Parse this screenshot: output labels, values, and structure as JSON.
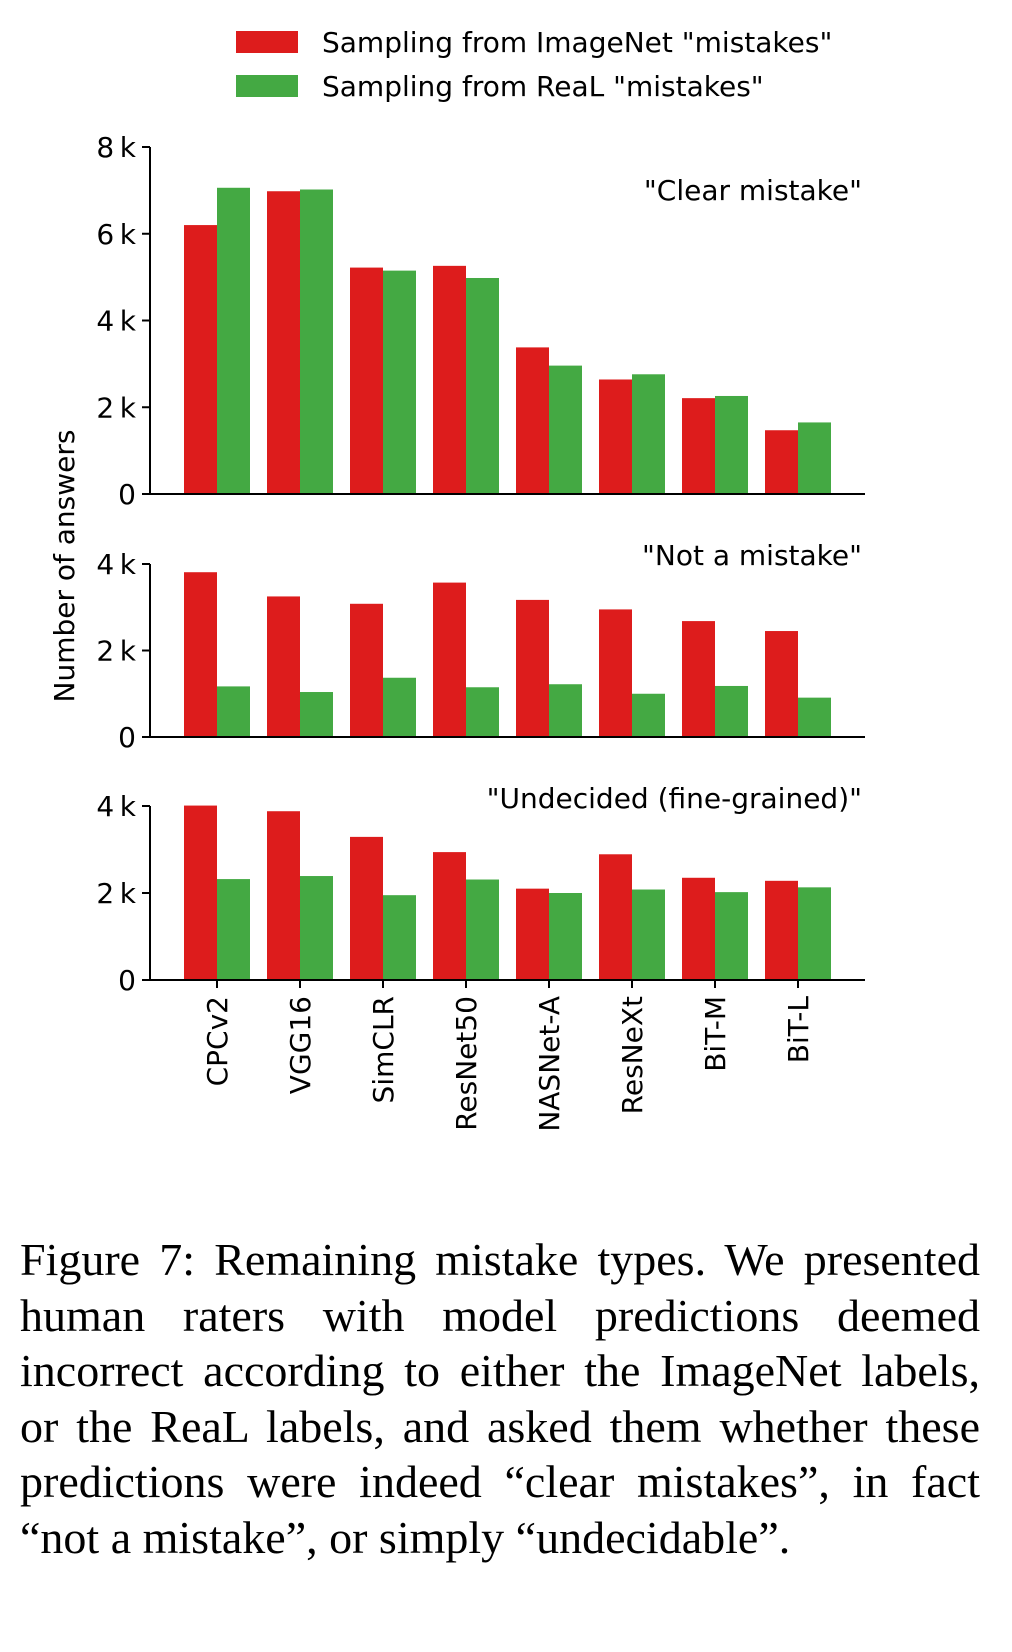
{
  "chart_data": {
    "type": "bar",
    "categories": [
      "CPCv2",
      "VGG16",
      "SimCLR",
      "ResNet50",
      "NASNet-A",
      "ResNeXt",
      "BiT-M",
      "BiT-L"
    ],
    "ylabel": "Number of answers",
    "legend": {
      "placement": "top",
      "entries": [
        "Sampling from ImageNet \"mistakes\"",
        "Sampling from ReaL \"mistakes\""
      ]
    },
    "colors": [
      "#dd1c1c",
      "#44a943"
    ],
    "grid": false,
    "panels": [
      {
        "annotation": "\"Clear mistake\"",
        "ylim": [
          0,
          8000
        ],
        "yticks": [
          0,
          2000,
          4000,
          6000,
          8000
        ],
        "yticklabels": [
          "0",
          "2 k",
          "4 k",
          "6 k",
          "8 k"
        ],
        "series": [
          {
            "name": "Sampling from ImageNet \"mistakes\"",
            "values": [
              6200,
              6980,
              5220,
              5260,
              3380,
              2640,
              2210,
              1470
            ]
          },
          {
            "name": "Sampling from ReaL \"mistakes\"",
            "values": [
              7060,
              7020,
              5150,
              4980,
              2960,
              2760,
              2260,
              1650
            ]
          }
        ]
      },
      {
        "annotation": "\"Not a mistake\"",
        "ylim": [
          0,
          4000
        ],
        "yticks": [
          0,
          2000,
          4000
        ],
        "yticklabels": [
          "0",
          "2 k",
          "4 k"
        ],
        "series": [
          {
            "name": "Sampling from ImageNet \"mistakes\"",
            "values": [
              3810,
              3250,
              3080,
              3570,
              3170,
              2950,
              2680,
              2450
            ]
          },
          {
            "name": "Sampling from ReaL \"mistakes\"",
            "values": [
              1170,
              1040,
              1370,
              1150,
              1220,
              1000,
              1180,
              910
            ]
          }
        ]
      },
      {
        "annotation": "\"Undecided (fine-grained)\"",
        "ylim": [
          0,
          4000
        ],
        "yticks": [
          0,
          2000,
          4000
        ],
        "yticklabels": [
          "0",
          "2 k",
          "4 k"
        ],
        "series": [
          {
            "name": "Sampling from ImageNet \"mistakes\"",
            "values": [
              4010,
              3880,
              3290,
              2940,
              2100,
              2890,
              2350,
              2280
            ]
          },
          {
            "name": "Sampling from ReaL \"mistakes\"",
            "values": [
              2320,
              2390,
              1950,
              2310,
              2000,
              2080,
              2020,
              2130
            ]
          }
        ]
      }
    ]
  },
  "caption": "Figure 7: Remaining mistake types. We presented human raters with model predictions deemed incorrect according to either the ImageNet labels, or the ReaL labels, and asked them whether these predictions were indeed “clear mistakes”, in fact “not a mistake”, or simply “undecidable”."
}
